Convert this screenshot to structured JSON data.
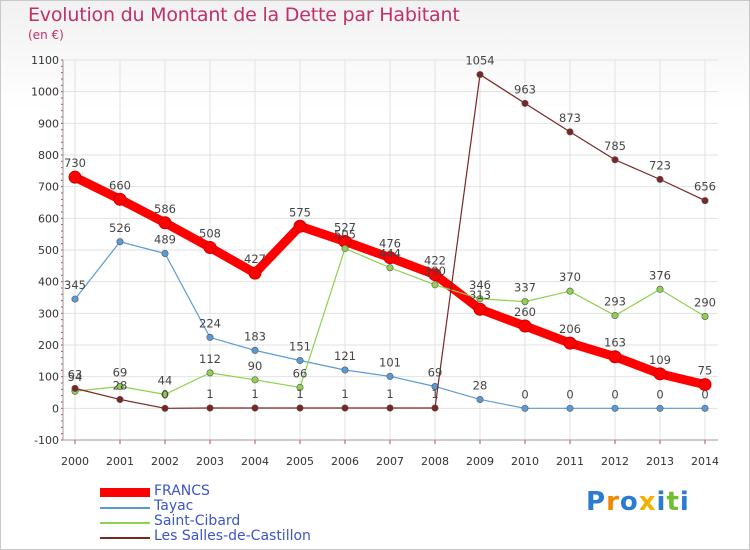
{
  "chart_data": {
    "type": "line",
    "title": "Evolution du Montant de la Dette par Habitant",
    "subtitle": "(en €)",
    "x": [
      "2000",
      "2001",
      "2002",
      "2003",
      "2004",
      "2005",
      "2006",
      "2007",
      "2008",
      "2009",
      "2010",
      "2011",
      "2012",
      "2013",
      "2014"
    ],
    "ylim": [
      -100,
      1100
    ],
    "yticks": [
      "-100",
      "0",
      "100",
      "200",
      "300",
      "400",
      "500",
      "600",
      "700",
      "800",
      "900",
      "1000",
      "1100"
    ],
    "grid": true,
    "legend_position": "bottom-left",
    "series": [
      {
        "name": "FRANCS",
        "color": "#ff0000",
        "values": [
          730,
          660,
          586,
          508,
          427,
          575,
          527,
          476,
          422,
          313,
          260,
          206,
          163,
          109,
          75
        ],
        "labels": [
          "730",
          "660",
          "586",
          "508",
          "427",
          "575",
          "527",
          "476",
          "422",
          "313",
          "260",
          "206",
          "163",
          "109",
          "75"
        ]
      },
      {
        "name": "Tayac",
        "color": "#5b9bd5",
        "values": [
          345,
          526,
          489,
          224,
          183,
          151,
          121,
          101,
          69,
          28,
          0,
          0,
          0,
          0,
          0
        ],
        "labels": [
          "345",
          "526",
          "489",
          "224",
          "183",
          "151",
          "121",
          "101",
          "69",
          "28",
          "0",
          "0",
          "0",
          "0",
          "0"
        ]
      },
      {
        "name": "Saint-Cibard",
        "color": "#8fd150",
        "values": [
          54,
          69,
          44,
          112,
          90,
          66,
          505,
          444,
          390,
          346,
          337,
          370,
          293,
          376,
          290
        ],
        "labels": [
          "54",
          "69",
          "44",
          "112",
          "90",
          "66",
          "505",
          "444",
          "390",
          "346",
          "337",
          "370",
          "293",
          "376",
          "290"
        ]
      },
      {
        "name": "Les Salles-de-Castillon",
        "color": "#7a2626",
        "values": [
          63,
          28,
          0,
          1,
          1,
          1,
          1,
          1,
          1,
          1054,
          963,
          873,
          785,
          723,
          656
        ],
        "labels": [
          "63",
          "28",
          "0",
          "1",
          "1",
          "1",
          "1",
          "1",
          "1",
          "1054",
          "963",
          "873",
          "785",
          "723",
          "656"
        ]
      }
    ]
  },
  "logo": {
    "text": "Proxiti",
    "letters": [
      "P",
      "r",
      "o",
      "x",
      "i",
      "t",
      "i"
    ],
    "colors": [
      "#2b7bd1",
      "#f08a00",
      "#2b7bd1",
      "#f0b400",
      "#2b7bd1",
      "#6fbf30",
      "#2b7bd1"
    ]
  }
}
